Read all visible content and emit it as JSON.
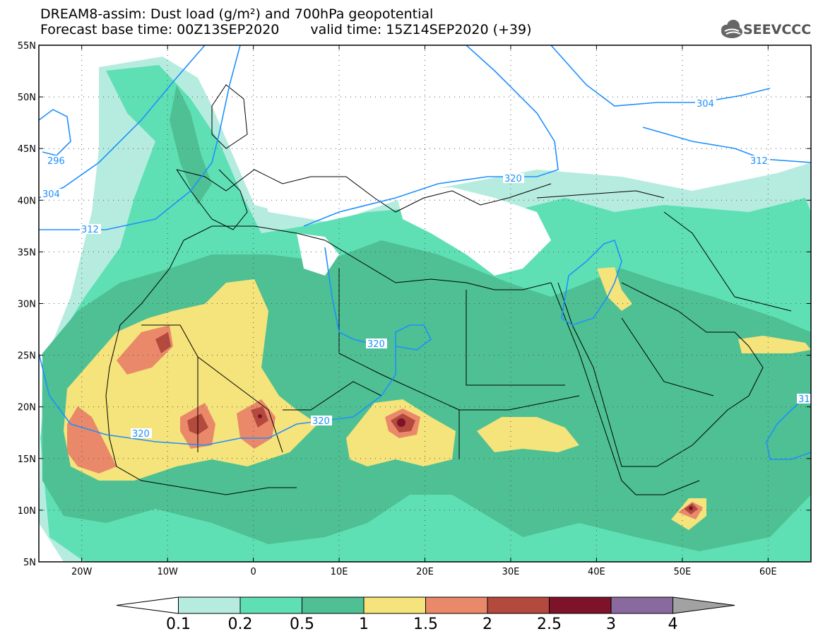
{
  "header": {
    "line1": "DREAM8-assim: Dust load (g/m²) and 700hPa geopotential",
    "forecast_base": "Forecast base time: 00Z13SEP2020",
    "valid_time": "valid time: 15Z14SEP2020 (+39)"
  },
  "logo": {
    "name": "SEEVCCC",
    "icon": "cloud-icon"
  },
  "map": {
    "lon_range": [
      -25,
      65
    ],
    "lat_range": [
      5,
      55
    ],
    "lon_ticks": [
      {
        "lon": -20,
        "label": "20W"
      },
      {
        "lon": -10,
        "label": "10W"
      },
      {
        "lon": 0,
        "label": "0"
      },
      {
        "lon": 10,
        "label": "10E"
      },
      {
        "lon": 20,
        "label": "20E"
      },
      {
        "lon": 30,
        "label": "30E"
      },
      {
        "lon": 40,
        "label": "40E"
      },
      {
        "lon": 50,
        "label": "50E"
      },
      {
        "lon": 60,
        "label": "60E"
      }
    ],
    "lat_ticks": [
      {
        "lat": 55,
        "label": "55N"
      },
      {
        "lat": 50,
        "label": "50N"
      },
      {
        "lat": 45,
        "label": "45N"
      },
      {
        "lat": 40,
        "label": "40N"
      },
      {
        "lat": 35,
        "label": "35N"
      },
      {
        "lat": 30,
        "label": "30N"
      },
      {
        "lat": 25,
        "label": "25N"
      },
      {
        "lat": 20,
        "label": "20N"
      },
      {
        "lat": 15,
        "label": "15N"
      },
      {
        "lat": 10,
        "label": "10N"
      },
      {
        "lat": 5,
        "label": "5N"
      }
    ],
    "contour_labels": [
      "296",
      "304",
      "312",
      "320",
      "320",
      "320",
      "320",
      "304",
      "312",
      "31"
    ]
  },
  "colorbar": {
    "labels": [
      "0.1",
      "0.2",
      "0.5",
      "1",
      "1.5",
      "2",
      "2.5",
      "3",
      "4"
    ],
    "colors": [
      "#ffffff",
      "#b6ece0",
      "#5ee0b4",
      "#4ec093",
      "#f5e37b",
      "#e9896a",
      "#b4493d",
      "#7d1229",
      "#8a6a9e",
      "#a2a2a2"
    ]
  },
  "colors": {
    "contour_line": "#1e90ff",
    "border": "#000000"
  }
}
